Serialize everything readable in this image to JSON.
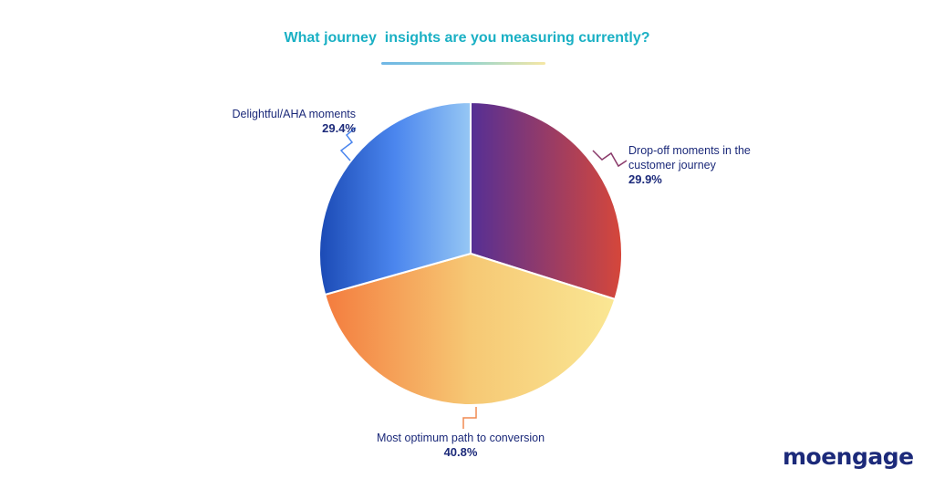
{
  "chart_data": {
    "type": "pie",
    "title": "What journey  insights are you measuring currently?",
    "slices": [
      {
        "label": "Drop-off moments in the customer journey",
        "value": 29.9,
        "value_label": "29.9%",
        "color": "#c94a3d"
      },
      {
        "label": "Most optimum path to conversion",
        "value": 40.8,
        "value_label": "40.8%",
        "color": "#f4b860"
      },
      {
        "label": "Delightful/AHA moments",
        "value": 29.4,
        "value_label": "29.4%",
        "color": "#3f7fe8"
      }
    ]
  },
  "brand": {
    "logo_text": "moengage"
  }
}
